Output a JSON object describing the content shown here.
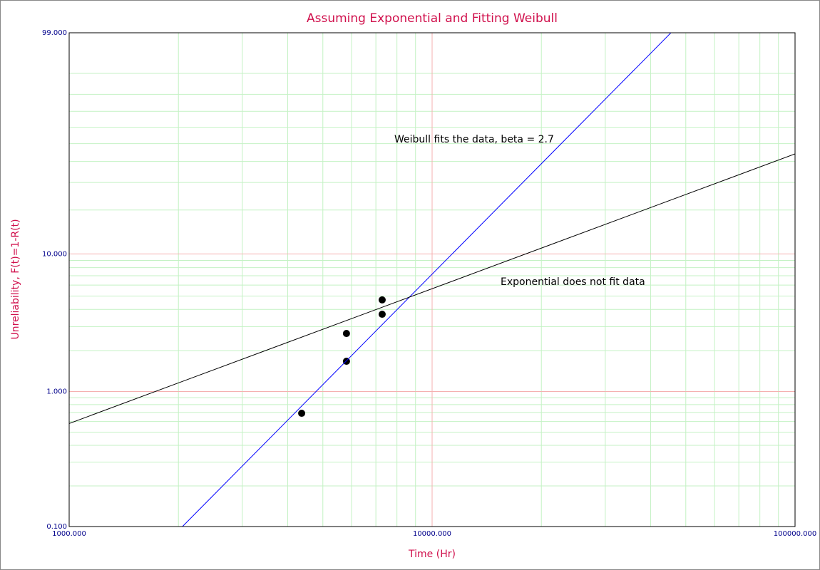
{
  "chart_data": {
    "type": "scatter",
    "title": "Assuming Exponential and Fitting Weibull",
    "xlabel": "Time (Hr)",
    "ylabel": "Unreliability, F(t)=1-R(t)",
    "xscale": "log",
    "yscale": "weibull",
    "xlim": [
      1000,
      100000
    ],
    "ylim": [
      0.1,
      99
    ],
    "xticks": [
      {
        "value": 1000,
        "label": "1000.000"
      },
      {
        "value": 10000,
        "label": "10000.000"
      },
      {
        "value": 100000,
        "label": "100000.000"
      }
    ],
    "yticks": [
      {
        "value": 0.1,
        "label": "0.100"
      },
      {
        "value": 1,
        "label": "1.000"
      },
      {
        "value": 10,
        "label": "10.000"
      },
      {
        "value": 99,
        "label": "99.000"
      }
    ],
    "x_minor_ticks": [
      2000,
      3000,
      4000,
      5000,
      6000,
      7000,
      8000,
      9000,
      20000,
      30000,
      40000,
      50000,
      60000,
      70000,
      80000,
      90000
    ],
    "y_minor_ticks": [
      0.2,
      0.3,
      0.4,
      0.5,
      0.6,
      0.7,
      0.8,
      0.9,
      2,
      3,
      4,
      5,
      6,
      7,
      8,
      9,
      20,
      30,
      40,
      50,
      60,
      70,
      80,
      90
    ],
    "grid": true,
    "series": [
      {
        "color": "#000000",
        "mode": "markers",
        "x": [
          4371,
          5808,
          5808,
          7285,
          7285
        ],
        "values": [
          0.69,
          1.67,
          2.67,
          3.69,
          4.69
        ]
      },
      {
        "color": "#0000ff",
        "mode": "line",
        "x": [
          2052,
          45500
        ],
        "values": [
          0.1,
          99
        ]
      },
      {
        "color": "#000000",
        "mode": "line",
        "x": [
          1000,
          100000
        ],
        "values": [
          0.58,
          44.1
        ]
      }
    ],
    "annotations": [
      {
        "text": "Weibull fits the data, beta = 2.7"
      },
      {
        "text": "Exponential does not fit data"
      }
    ]
  }
}
